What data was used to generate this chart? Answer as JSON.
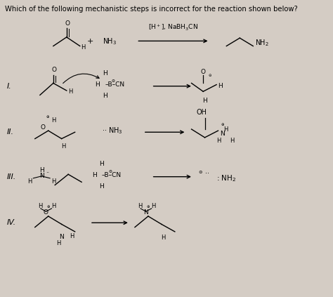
{
  "title": "Which of the following mechanistic steps is incorrect for the reaction shown below?",
  "background_color": "#d4ccc4",
  "title_fontsize": 7.2,
  "figsize": [
    4.74,
    4.23
  ],
  "dpi": 100,
  "xlim": [
    0,
    10
  ],
  "ylim": [
    0,
    10
  ]
}
